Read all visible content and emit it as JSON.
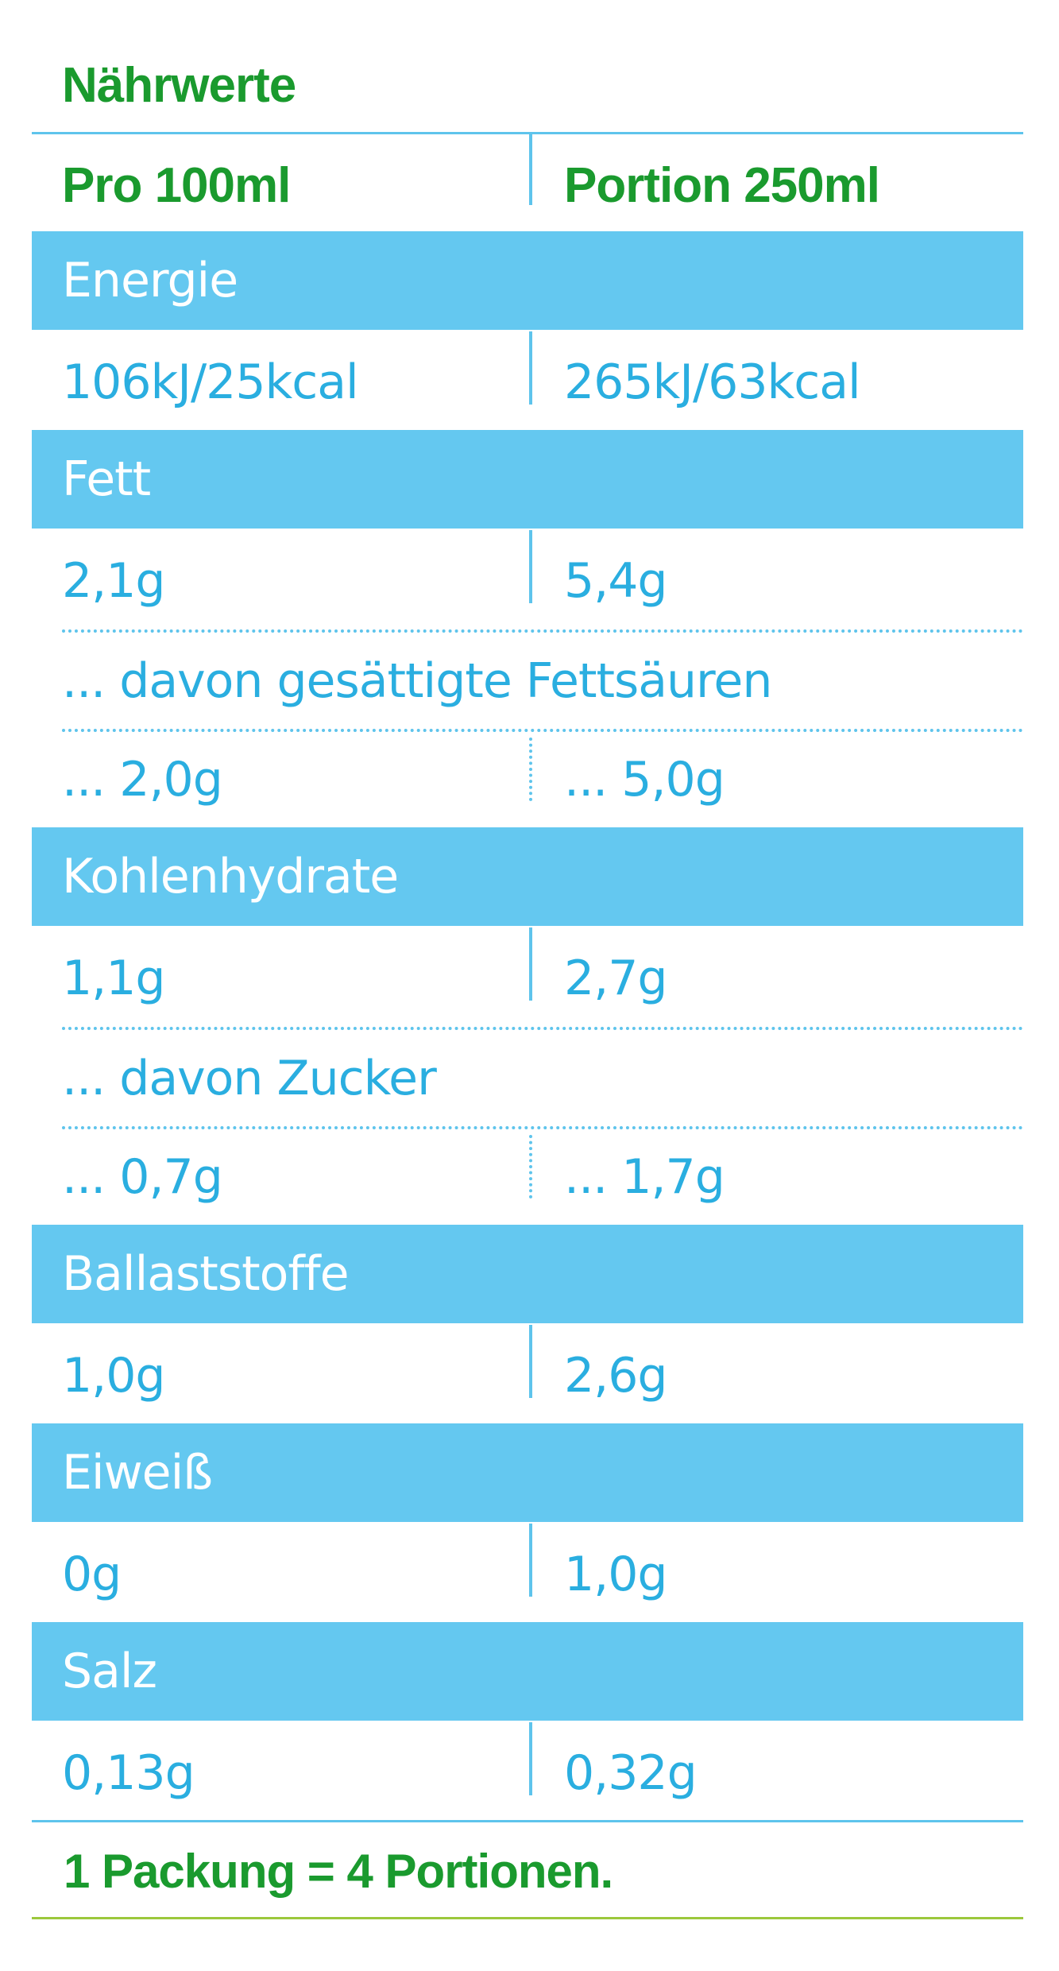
{
  "title": "Nährwerte",
  "header": {
    "col1": "Pro 100ml",
    "col2": "Portion 250ml"
  },
  "rows": [
    {
      "label": "Energie",
      "v1": "106kJ/25kcal",
      "v2": "265kJ/63kcal"
    },
    {
      "label": "Fett",
      "v1": "2,1g",
      "v2": "5,4g",
      "sub": {
        "label": "... davon gesättigte Fettsäuren",
        "v1": "... 2,0g",
        "v2": "... 5,0g"
      }
    },
    {
      "label": "Kohlenhydrate",
      "v1": "1,1g",
      "v2": "2,7g",
      "sub": {
        "label": "... davon Zucker",
        "v1": "... 0,7g",
        "v2": "... 1,7g"
      }
    },
    {
      "label": "Ballaststoffe",
      "v1": "1,0g",
      "v2": "2,6g"
    },
    {
      "label": "Eiweiß",
      "v1": "0g",
      "v2": "1,0g"
    },
    {
      "label": "Salz",
      "v1": "0,13g",
      "v2": "0,32g"
    }
  ],
  "footer": "1 Packung = 4 Portionen.",
  "colors": {
    "green": "#1a9a2e",
    "band": "#64c8f0",
    "value": "#2aaee0",
    "rule": "#5ec4ec",
    "footer_rule": "#9cc83c"
  }
}
